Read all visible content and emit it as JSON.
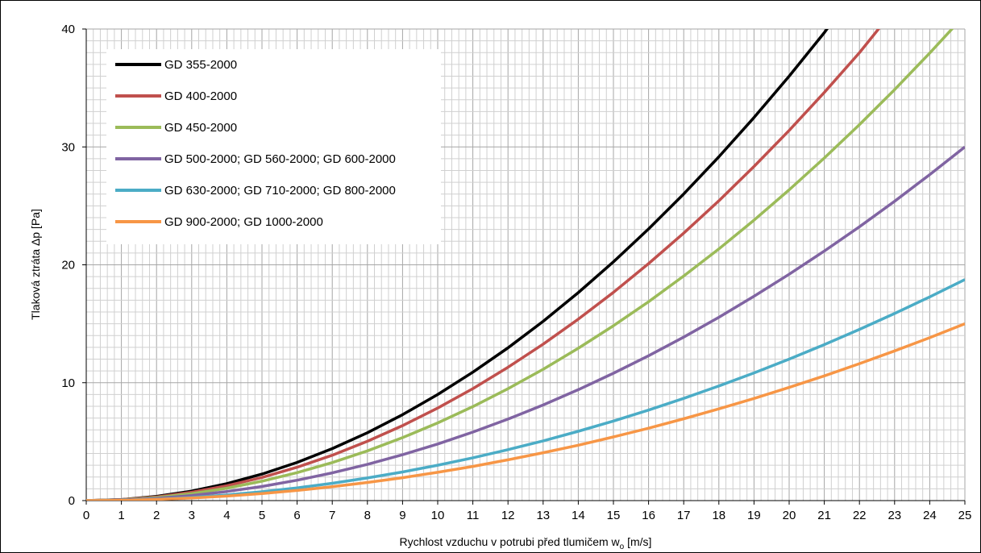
{
  "chart_data": {
    "type": "line",
    "xlabel": "Rychlost vzduchu v potrubi před tlumičem w",
    "xlabel_sub": "o",
    "xlabel_unit": " [m/s]",
    "ylabel": "Tlaková ztráta Δp [Pa]",
    "xlim": [
      0,
      25
    ],
    "ylim": [
      0,
      40
    ],
    "x_ticks": [
      "0",
      "1",
      "2",
      "3",
      "4",
      "5",
      "6",
      "7",
      "8",
      "9",
      "10",
      "11",
      "12",
      "13",
      "14",
      "15",
      "16",
      "17",
      "18",
      "19",
      "20",
      "21",
      "22",
      "23",
      "24",
      "25"
    ],
    "y_ticks": [
      "0",
      "10",
      "20",
      "30",
      "40"
    ],
    "grid": true,
    "legend_position": "top-left",
    "x": [
      0,
      1,
      2,
      3,
      4,
      5,
      6,
      7,
      8,
      9,
      10,
      11,
      12,
      13,
      14,
      15,
      16,
      17,
      18,
      19,
      20,
      21,
      22,
      23,
      24,
      25
    ],
    "series": [
      {
        "name": "GD 355-2000",
        "color": "#000000",
        "values": [
          0,
          0.09,
          0.36,
          0.81,
          1.44,
          2.25,
          3.24,
          4.41,
          5.76,
          7.29,
          9.0,
          10.89,
          12.96,
          15.21,
          17.64,
          20.25,
          23.04,
          26.01,
          29.16,
          32.49,
          36.0,
          39.69,
          null,
          null,
          null,
          null
        ]
      },
      {
        "name": "GD 400-2000",
        "color": "#c0504d",
        "values": [
          0,
          0.08,
          0.31,
          0.71,
          1.26,
          1.96,
          2.83,
          3.85,
          5.03,
          6.36,
          7.85,
          9.5,
          11.31,
          13.27,
          15.39,
          17.66,
          20.1,
          22.69,
          25.43,
          28.34,
          31.4,
          34.62,
          37.99,
          null,
          null,
          null
        ]
      },
      {
        "name": "GD 450-2000",
        "color": "#9bbb59",
        "values": [
          0,
          0.07,
          0.26,
          0.59,
          1.05,
          1.65,
          2.37,
          3.23,
          4.22,
          5.34,
          6.59,
          7.97,
          9.49,
          11.14,
          12.92,
          14.83,
          16.87,
          19.05,
          21.35,
          23.79,
          26.36,
          29.06,
          31.89,
          34.86,
          37.96,
          41.19
        ]
      },
      {
        "name": "GD 500-2000; GD 560-2000; GD 600-2000",
        "color": "#8064a2",
        "values": [
          0,
          0.05,
          0.19,
          0.43,
          0.77,
          1.2,
          1.73,
          2.35,
          3.07,
          3.89,
          4.8,
          5.81,
          6.91,
          8.11,
          9.41,
          10.8,
          12.29,
          13.87,
          15.55,
          17.33,
          19.2,
          21.17,
          23.23,
          25.39,
          27.65,
          30.0
        ]
      },
      {
        "name": "GD 630-2000; GD 710-2000; GD 800-2000",
        "color": "#4bacc6",
        "values": [
          0,
          0.03,
          0.12,
          0.27,
          0.48,
          0.75,
          1.08,
          1.47,
          1.92,
          2.43,
          3.0,
          3.63,
          4.32,
          5.07,
          5.88,
          6.75,
          7.68,
          8.67,
          9.72,
          10.83,
          12.0,
          13.23,
          14.52,
          15.87,
          17.28,
          18.75
        ]
      },
      {
        "name": "GD 900-2000; GD 1000-2000",
        "color": "#f79646",
        "values": [
          0,
          0.02,
          0.1,
          0.22,
          0.38,
          0.6,
          0.86,
          1.18,
          1.54,
          1.94,
          2.4,
          2.9,
          3.46,
          4.06,
          4.7,
          5.4,
          6.14,
          6.94,
          7.78,
          8.66,
          9.6,
          10.58,
          11.62,
          12.7,
          13.82,
          15.0
        ]
      }
    ]
  }
}
